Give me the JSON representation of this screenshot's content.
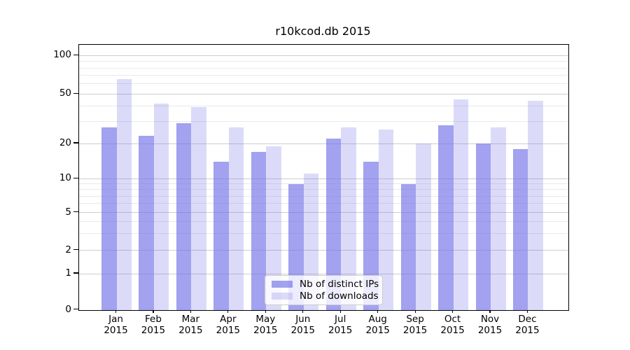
{
  "title": "r10kcod.db 2015",
  "chart_data": {
    "type": "bar",
    "title": "r10kcod.db 2015",
    "categories": [
      "Jan",
      "Feb",
      "Mar",
      "Apr",
      "May",
      "Jun",
      "Jul",
      "Aug",
      "Sep",
      "Oct",
      "Nov",
      "Dec"
    ],
    "category_year": "2015",
    "series": [
      {
        "name": "Nb of distinct IPs",
        "color": "rgba(112,112,232,0.65)",
        "display_color": "#a2a2f0",
        "values": [
          27,
          23,
          29,
          14,
          17,
          9,
          22,
          14,
          9,
          28,
          20,
          18
        ]
      },
      {
        "name": "Nb of downloads",
        "color": "rgba(112,112,232,0.25)",
        "display_color": "#d9d9f8",
        "values": [
          65,
          42,
          39,
          27,
          19,
          11,
          27,
          26,
          20,
          45,
          27,
          44
        ]
      }
    ],
    "y_axis": {
      "scale": "log-like with 0 baseline",
      "ticks": [
        100,
        50,
        20,
        10,
        5,
        2,
        1,
        0
      ],
      "minor_gridlines": [
        3,
        4,
        6,
        7,
        8,
        9,
        30,
        40,
        60,
        70,
        80,
        90
      ]
    },
    "grid": {
      "major_color": "#cdcdcd",
      "minor_color": "#e9e9e9"
    },
    "legend": {
      "position": "lower center",
      "entries": [
        "Nb of distinct IPs",
        "Nb of downloads"
      ]
    }
  }
}
